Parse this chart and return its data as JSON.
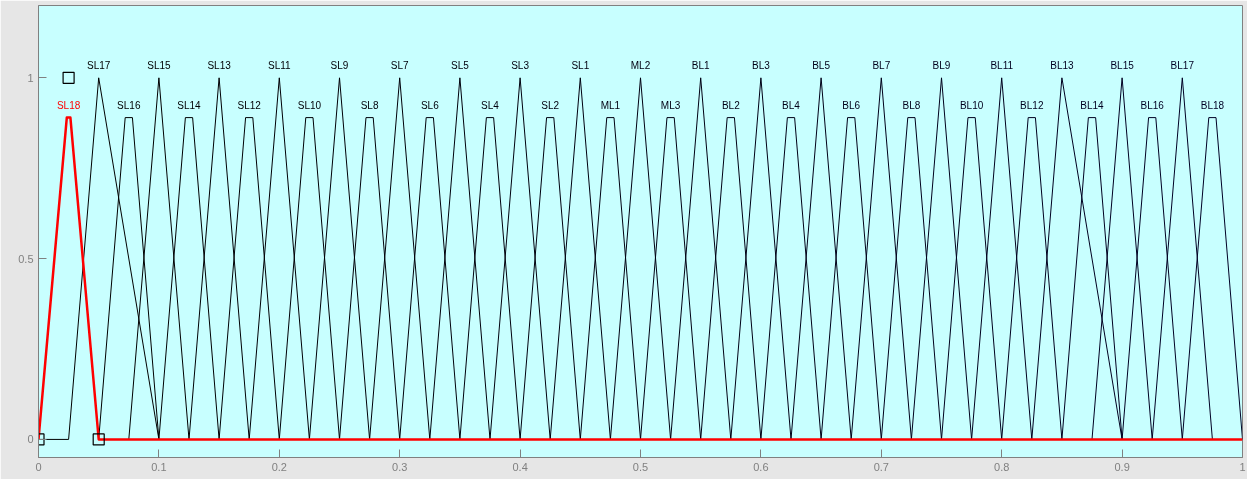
{
  "chart_data": {
    "type": "line",
    "xlim": [
      0,
      1
    ],
    "ylim": [
      -0.05,
      1.2
    ],
    "xticks": [
      0,
      0.1,
      0.2,
      0.3,
      0.4,
      0.5,
      0.6,
      0.7,
      0.8,
      0.9,
      1
    ],
    "yticks": [
      0,
      0.5,
      1
    ],
    "grid": false,
    "legend": false,
    "marker": "none",
    "line_style": "solid",
    "series": [
      {
        "name": "SL18",
        "color": "#ff0000",
        "x": [
          0,
          0.0235,
          0.0265,
          0.05,
          1
        ],
        "values": [
          0,
          0.89,
          0.89,
          0,
          0
        ]
      },
      {
        "name": "SL17",
        "color": "#000000",
        "x": [
          0,
          0.025,
          0.05,
          0.1
        ],
        "values": [
          0,
          0,
          1,
          0
        ]
      },
      {
        "name": "SL16",
        "color": "#000001",
        "x": [
          0.05,
          0.072,
          0.078,
          0.1
        ],
        "values": [
          0,
          0.89,
          0.89,
          0
        ]
      },
      {
        "name": "SL15",
        "color": "#000002",
        "x": [
          0.075,
          0.1,
          0.125
        ],
        "values": [
          0,
          1,
          0
        ]
      },
      {
        "name": "SL14",
        "color": "#000003",
        "x": [
          0.1,
          0.122,
          0.128,
          0.15
        ],
        "values": [
          0,
          0.89,
          0.89,
          0
        ]
      },
      {
        "name": "SL13",
        "color": "#000004",
        "x": [
          0.125,
          0.15,
          0.175
        ],
        "values": [
          0,
          1,
          0
        ]
      },
      {
        "name": "SL12",
        "color": "#000005",
        "x": [
          0.15,
          0.172,
          0.178,
          0.2
        ],
        "values": [
          0,
          0.89,
          0.89,
          0
        ]
      },
      {
        "name": "SL11",
        "color": "#000006",
        "x": [
          0.175,
          0.2,
          0.225
        ],
        "values": [
          0,
          1,
          0
        ]
      },
      {
        "name": "SL10",
        "color": "#000007",
        "x": [
          0.2,
          0.222,
          0.228,
          0.25
        ],
        "values": [
          0,
          0.89,
          0.89,
          0
        ]
      },
      {
        "name": "SL9",
        "color": "#000008",
        "x": [
          0.225,
          0.25,
          0.275
        ],
        "values": [
          0,
          1,
          0
        ]
      },
      {
        "name": "SL8",
        "color": "#000009",
        "x": [
          0.25,
          0.272,
          0.278,
          0.3
        ],
        "values": [
          0,
          0.89,
          0.89,
          0
        ]
      },
      {
        "name": "SL7",
        "color": "#00000a",
        "x": [
          0.275,
          0.3,
          0.325
        ],
        "values": [
          0,
          1,
          0
        ]
      },
      {
        "name": "SL6",
        "color": "#00000b",
        "x": [
          0.3,
          0.322,
          0.328,
          0.35
        ],
        "values": [
          0,
          0.89,
          0.89,
          0
        ]
      },
      {
        "name": "SL5",
        "color": "#00000c",
        "x": [
          0.325,
          0.35,
          0.375
        ],
        "values": [
          0,
          1,
          0
        ]
      },
      {
        "name": "SL4",
        "color": "#00000d",
        "x": [
          0.35,
          0.372,
          0.378,
          0.4
        ],
        "values": [
          0,
          0.89,
          0.89,
          0
        ]
      },
      {
        "name": "SL3",
        "color": "#00000e",
        "x": [
          0.375,
          0.4,
          0.425
        ],
        "values": [
          0,
          1,
          0
        ]
      },
      {
        "name": "SL2",
        "color": "#00000f",
        "x": [
          0.4,
          0.422,
          0.428,
          0.45
        ],
        "values": [
          0,
          0.89,
          0.89,
          0
        ]
      },
      {
        "name": "SL1",
        "color": "#000010",
        "x": [
          0.425,
          0.45,
          0.475
        ],
        "values": [
          0,
          1,
          0
        ]
      },
      {
        "name": "ML1",
        "color": "#000011",
        "x": [
          0.45,
          0.472,
          0.478,
          0.5
        ],
        "values": [
          0,
          0.89,
          0.89,
          0
        ]
      },
      {
        "name": "ML2",
        "color": "#000012",
        "x": [
          0.475,
          0.5,
          0.525
        ],
        "values": [
          0,
          1,
          0
        ]
      },
      {
        "name": "ML3",
        "color": "#000013",
        "x": [
          0.5,
          0.522,
          0.528,
          0.55
        ],
        "values": [
          0,
          0.89,
          0.89,
          0
        ]
      },
      {
        "name": "BL1",
        "color": "#000014",
        "x": [
          0.525,
          0.55,
          0.575
        ],
        "values": [
          0,
          1,
          0
        ]
      },
      {
        "name": "BL2",
        "color": "#000015",
        "x": [
          0.55,
          0.572,
          0.578,
          0.6
        ],
        "values": [
          0,
          0.89,
          0.89,
          0
        ]
      },
      {
        "name": "BL3",
        "color": "#000016",
        "x": [
          0.575,
          0.6,
          0.625
        ],
        "values": [
          0,
          1,
          0
        ]
      },
      {
        "name": "BL4",
        "color": "#000017",
        "x": [
          0.6,
          0.622,
          0.628,
          0.65
        ],
        "values": [
          0,
          0.89,
          0.89,
          0
        ]
      },
      {
        "name": "BL5",
        "color": "#000018",
        "x": [
          0.625,
          0.65,
          0.675
        ],
        "values": [
          0,
          1,
          0
        ]
      },
      {
        "name": "BL6",
        "color": "#000019",
        "x": [
          0.65,
          0.672,
          0.678,
          0.7
        ],
        "values": [
          0,
          0.89,
          0.89,
          0
        ]
      },
      {
        "name": "BL7",
        "color": "#00001a",
        "x": [
          0.675,
          0.7,
          0.725
        ],
        "values": [
          0,
          1,
          0
        ]
      },
      {
        "name": "BL8",
        "color": "#00001b",
        "x": [
          0.7,
          0.722,
          0.728,
          0.75
        ],
        "values": [
          0,
          0.89,
          0.89,
          0
        ]
      },
      {
        "name": "BL9",
        "color": "#00001c",
        "x": [
          0.725,
          0.75,
          0.775
        ],
        "values": [
          0,
          1,
          0
        ]
      },
      {
        "name": "BL10",
        "color": "#00001d",
        "x": [
          0.75,
          0.772,
          0.778,
          0.8
        ],
        "values": [
          0,
          0.89,
          0.89,
          0
        ]
      },
      {
        "name": "BL11",
        "color": "#00001e",
        "x": [
          0.775,
          0.8,
          0.825
        ],
        "values": [
          0,
          1,
          0
        ]
      },
      {
        "name": "BL12",
        "color": "#00001f",
        "x": [
          0.8,
          0.822,
          0.828,
          0.85
        ],
        "values": [
          0,
          0.89,
          0.89,
          0
        ]
      },
      {
        "name": "BL13",
        "color": "#000020",
        "x": [
          0.825,
          0.85,
          0.9
        ],
        "values": [
          0,
          1,
          0
        ]
      },
      {
        "name": "BL14",
        "color": "#000021",
        "x": [
          0.85,
          0.872,
          0.878,
          0.9
        ],
        "values": [
          0,
          0.89,
          0.89,
          0
        ]
      },
      {
        "name": "BL15",
        "color": "#000022",
        "x": [
          0.875,
          0.9,
          0.925
        ],
        "values": [
          0,
          1,
          0
        ]
      },
      {
        "name": "BL16",
        "color": "#000023",
        "x": [
          0.9,
          0.922,
          0.928,
          0.95
        ],
        "values": [
          0,
          0.89,
          0.89,
          0
        ]
      },
      {
        "name": "BL17",
        "color": "#000024",
        "x": [
          0.925,
          0.95,
          0.975
        ],
        "values": [
          0,
          1,
          0
        ]
      },
      {
        "name": "BL18",
        "color": "#000025",
        "x": [
          0.95,
          0.972,
          0.978,
          1
        ],
        "values": [
          0,
          0.89,
          0.89,
          0
        ]
      },
      {
        "type": "scatter",
        "marker": "square",
        "color": "#000000",
        "x": [
          0,
          0.025,
          0.05
        ],
        "values": [
          0,
          1,
          0
        ]
      }
    ]
  }
}
